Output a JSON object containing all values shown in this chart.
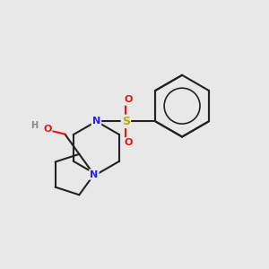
{
  "bg_color": "#e8e8e8",
  "bond_color": "#222222",
  "N_color": "#2222ee",
  "O_color": "#ee1111",
  "S_color": "#bbaa00",
  "H_color": "#888888",
  "linewidth": 1.5,
  "figsize": [
    3.0,
    3.0
  ],
  "dpi": 100,
  "xlim": [
    -2.8,
    2.8
  ],
  "ylim": [
    -2.2,
    2.8
  ]
}
